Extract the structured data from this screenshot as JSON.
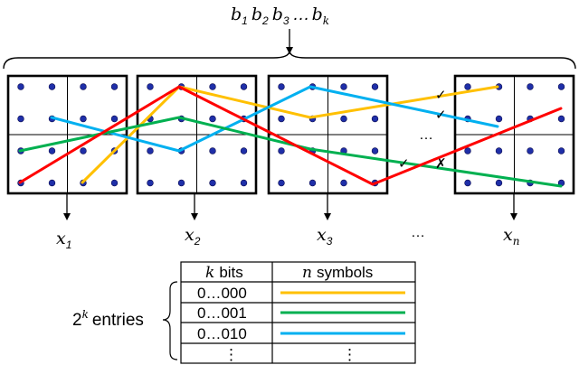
{
  "header": {
    "bits": {
      "b1": "b",
      "s1": "1",
      "b2": "b",
      "s2": "2",
      "b3": "b",
      "s3": "3",
      "dots": "…",
      "bk": "b",
      "sk": "k"
    }
  },
  "grids": {
    "middle_dots": "…",
    "outputs": [
      {
        "var": "x",
        "sub": "1"
      },
      {
        "var": "x",
        "sub": "2"
      },
      {
        "var": "x",
        "sub": "3"
      },
      {
        "var": "x",
        "sub": "n"
      }
    ],
    "output_dots": "…",
    "marks": [
      "✓",
      "✓",
      "✓",
      "✗"
    ]
  },
  "paths": {
    "colors": {
      "yellow": "#ffc000",
      "green": "#00b050",
      "blue": "#00b0f0",
      "red": "#ff0000"
    }
  },
  "table": {
    "entries_base": "2",
    "entries_exp": "k",
    "entries_label": "entries",
    "header_left_var": "k",
    "header_left_text": "bits",
    "header_right_var": "n",
    "header_right_text": "symbols",
    "rows": [
      {
        "label": "0…000",
        "color": "#ffc000"
      },
      {
        "label": "0…001",
        "color": "#00b050"
      },
      {
        "label": "0…010",
        "color": "#00b0f0"
      },
      {
        "label": "⋮",
        "color": ""
      }
    ],
    "last_right": "⋮"
  }
}
